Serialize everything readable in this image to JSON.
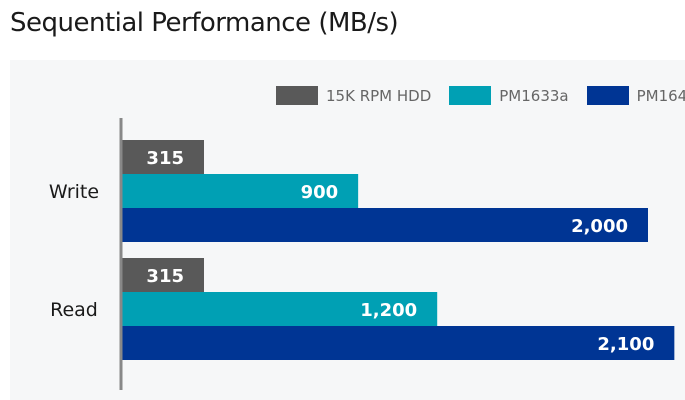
{
  "chart_data": {
    "type": "bar",
    "orientation": "horizontal",
    "title": "Sequential Performance (MB/s)",
    "categories": [
      "Write",
      "Read"
    ],
    "series": [
      {
        "name": "15K RPM HDD",
        "color": "#595959",
        "values": [
          315,
          315
        ],
        "labels": [
          "315",
          "315"
        ]
      },
      {
        "name": "PM1633a",
        "color": "#00a0b4",
        "values": [
          900,
          1200
        ],
        "labels": [
          "900",
          "1,200"
        ]
      },
      {
        "name": "PM164",
        "color": "#003594",
        "values": [
          2000,
          2100
        ],
        "labels": [
          "2,000",
          "2,100"
        ]
      }
    ],
    "xlim": [
      0,
      2100
    ],
    "grid": false,
    "legend_position": "top-right"
  }
}
